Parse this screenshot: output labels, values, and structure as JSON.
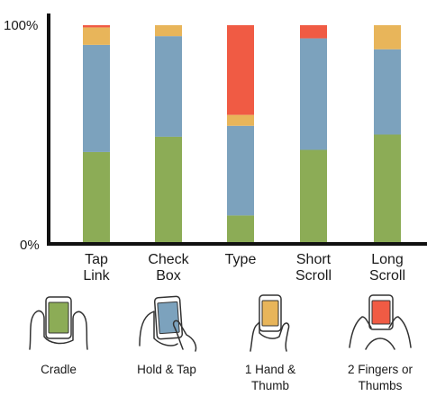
{
  "chart_data": {
    "type": "bar",
    "stacked": true,
    "categories": [
      [
        "Tap",
        "Link"
      ],
      [
        "Check",
        "Box"
      ],
      [
        "Type"
      ],
      [
        "Short",
        "Scroll"
      ],
      [
        "Long",
        "Scroll"
      ]
    ],
    "series": [
      {
        "name": "Cradle",
        "color": "#8cac56",
        "values": [
          42,
          49,
          13,
          43,
          50
        ]
      },
      {
        "name": "Hold & Tap",
        "color": "#7ca2bd",
        "values": [
          49,
          46,
          41,
          51,
          39
        ]
      },
      {
        "name": "1 Hand & Thumb",
        "color": "#e8b55a",
        "values": [
          8,
          5,
          5,
          0,
          11
        ]
      },
      {
        "name": "2 Fingers or Thumbs",
        "color": "#f05b44",
        "values": [
          1,
          0,
          41,
          6,
          0
        ]
      }
    ],
    "ylim": [
      0,
      100
    ],
    "ytick_labels": [
      "100%",
      "0%"
    ]
  },
  "legend": [
    {
      "label": [
        "Cradle"
      ],
      "icon": "cradle-grip-icon",
      "color": "#8cac56"
    },
    {
      "label": [
        "Hold & Tap"
      ],
      "icon": "hold-and-tap-grip-icon",
      "color": "#7ca2bd"
    },
    {
      "label": [
        "1 Hand &",
        "Thumb"
      ],
      "icon": "one-hand-thumb-grip-icon",
      "color": "#e8b55a"
    },
    {
      "label": [
        "2 Fingers or",
        "Thumbs"
      ],
      "icon": "two-thumbs-grip-icon",
      "color": "#f05b44"
    }
  ]
}
